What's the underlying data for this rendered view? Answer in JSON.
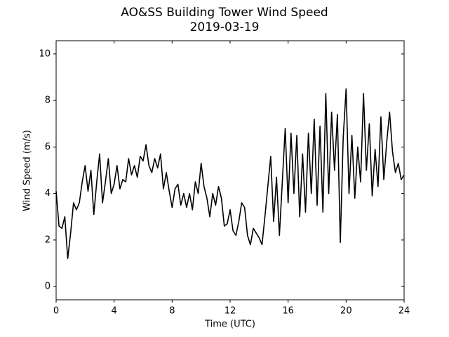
{
  "chart_data": {
    "type": "line",
    "title": "AO&SS Building Tower Wind Speed",
    "subtitle": "2019-03-19",
    "x_label": "Time (UTC)",
    "y_label": "Wind Speed (m/s)",
    "x": [
      0,
      0.2,
      0.4,
      0.6,
      0.8,
      1,
      1.2,
      1.4,
      1.6,
      1.8,
      2,
      2.2,
      2.4,
      2.6,
      2.8,
      3,
      3.2,
      3.4,
      3.6,
      3.8,
      4,
      4.2,
      4.4,
      4.6,
      4.8,
      5,
      5.2,
      5.4,
      5.6,
      5.8,
      6,
      6.2,
      6.4,
      6.6,
      6.8,
      7,
      7.2,
      7.4,
      7.6,
      7.8,
      8,
      8.2,
      8.4,
      8.6,
      8.8,
      9,
      9.2,
      9.4,
      9.6,
      9.8,
      10,
      10.2,
      10.4,
      10.6,
      10.8,
      11,
      11.2,
      11.4,
      11.6,
      11.8,
      12,
      12.2,
      12.4,
      12.6,
      12.8,
      13,
      13.2,
      13.4,
      13.6,
      13.8,
      14,
      14.2,
      14.4,
      14.6,
      14.8,
      15,
      15.2,
      15.4,
      15.6,
      15.8,
      16,
      16.2,
      16.4,
      16.6,
      16.8,
      17,
      17.2,
      17.4,
      17.6,
      17.8,
      18,
      18.2,
      18.4,
      18.6,
      18.8,
      19,
      19.2,
      19.4,
      19.6,
      19.8,
      20,
      20.2,
      20.4,
      20.6,
      20.8,
      21,
      21.2,
      21.4,
      21.6,
      21.8,
      22,
      22.2,
      22.4,
      22.6,
      22.8,
      23,
      23.2,
      23.4,
      23.6,
      23.8,
      24
    ],
    "series": [
      {
        "color": "#000000",
        "values": [
          4.1,
          2.6,
          2.5,
          3.0,
          1.2,
          2.3,
          3.6,
          3.3,
          3.6,
          4.5,
          5.2,
          4.1,
          5.0,
          3.1,
          4.5,
          5.7,
          3.6,
          4.5,
          5.5,
          4.0,
          4.4,
          5.2,
          4.2,
          4.6,
          4.5,
          5.5,
          4.8,
          5.2,
          4.7,
          5.6,
          5.4,
          6.1,
          5.2,
          4.9,
          5.5,
          5.1,
          5.7,
          4.2,
          4.9,
          4.1,
          3.4,
          4.2,
          4.4,
          3.5,
          4.0,
          3.4,
          4.0,
          3.3,
          4.5,
          4.0,
          5.3,
          4.3,
          3.8,
          3.0,
          4.0,
          3.5,
          4.3,
          3.8,
          2.6,
          2.7,
          3.3,
          2.4,
          2.2,
          2.8,
          3.6,
          3.4,
          2.2,
          1.8,
          2.5,
          2.3,
          2.1,
          1.8,
          3.0,
          4.3,
          5.6,
          2.8,
          4.7,
          2.2,
          4.5,
          6.8,
          3.6,
          6.6,
          4.0,
          6.5,
          3.0,
          5.7,
          3.2,
          6.6,
          4.0,
          7.2,
          3.5,
          6.9,
          3.2,
          8.3,
          4.0,
          7.5,
          5.0,
          7.4,
          1.9,
          6.4,
          8.5,
          4.0,
          6.5,
          3.8,
          6.0,
          4.5,
          8.3,
          5.0,
          7.0,
          3.9,
          5.9,
          4.3,
          7.3,
          4.6,
          6.2,
          7.5,
          5.8,
          4.9,
          5.3,
          4.6,
          4.8
        ]
      }
    ],
    "xlim": [
      0,
      24
    ],
    "xticks": [
      0,
      4,
      8,
      12,
      16,
      20,
      24
    ],
    "ylim": [
      -0.57,
      10.57
    ],
    "yticks": [
      0,
      2,
      4,
      6,
      8,
      10
    ],
    "grid": false
  }
}
